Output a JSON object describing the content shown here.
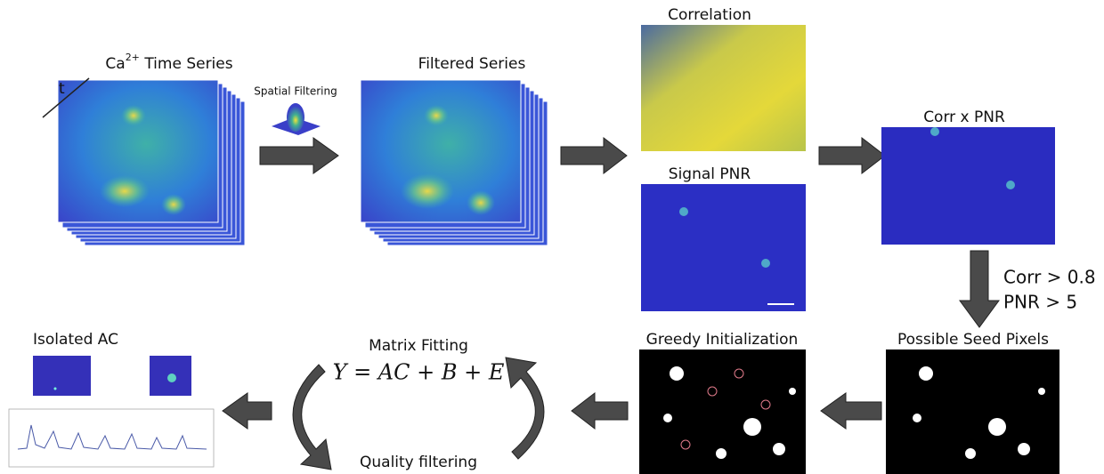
{
  "stages": {
    "time_series": {
      "label": "Ca",
      "label_superscript": "2+",
      "label_rest": "Time Series",
      "axis": "t"
    },
    "spatial_filtering": {
      "label": "Spatial Filtering"
    },
    "filtered_series": {
      "label": "Filtered Series"
    },
    "correlation": {
      "label": "Correlation"
    },
    "signal_pnr": {
      "label": "Signal PNR"
    },
    "corr_x_pnr": {
      "label": "Corr x PNR"
    },
    "thresholds": {
      "lines": [
        "Corr > 0.8",
        "PNR > 5"
      ]
    },
    "seed_pixels": {
      "label": "Possible Seed Pixels"
    },
    "greedy_init": {
      "label": "Greedy Initialization"
    },
    "matrix_fitting": {
      "label": "Matrix Fitting",
      "equation": "Y = AC + B + E"
    },
    "quality_filtering": {
      "label": "Quality filtering"
    },
    "isolated_ac": {
      "label": "Isolated AC"
    }
  }
}
